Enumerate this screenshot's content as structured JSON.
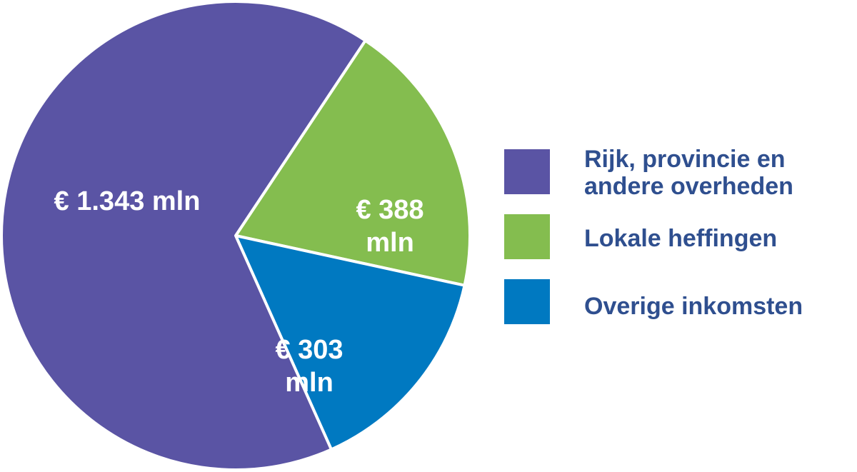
{
  "chart_data": {
    "type": "pie",
    "categories": [
      "Rijk, provincie en andere overheden",
      "Lokale heffingen",
      "Overige inkomsten"
    ],
    "values": [
      1343,
      388,
      303
    ],
    "slice_labels": [
      "€ 1.343 mln",
      "€ 388 mln",
      "€ 303 mln"
    ],
    "colors": [
      "#5a54a4",
      "#84bd4f",
      "#0079c1"
    ],
    "legend": {
      "placement": "right",
      "entries": [
        {
          "label_lines": [
            "Rijk, provincie en",
            "andere overheden"
          ]
        },
        {
          "label_lines": [
            "Lokale heffingen"
          ]
        },
        {
          "label_lines": [
            "Overige inkomsten"
          ]
        }
      ]
    },
    "title": ""
  }
}
